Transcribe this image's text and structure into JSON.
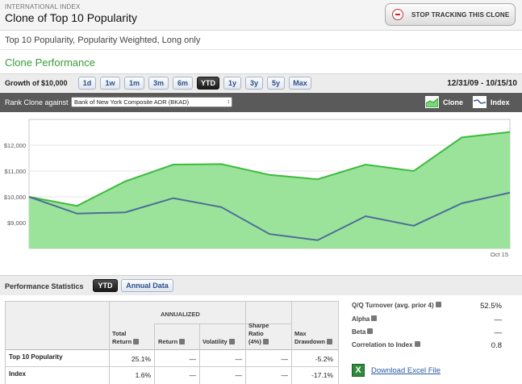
{
  "header": {
    "kicker": "INTERNATIONAL INDEX",
    "title": "Clone of Top 10 Popularity",
    "stop_button": "STOP TRACKING THIS CLONE"
  },
  "subtitle": "Top 10 Popularity, Popularity Weighted, Long only",
  "section_title": "Clone Performance",
  "range_bar": {
    "growth_label": "Growth of $10,000",
    "buttons": [
      "1d",
      "1w",
      "1m",
      "3m",
      "6m",
      "YTD",
      "1y",
      "3y",
      "5y",
      "Max"
    ],
    "active": "YTD",
    "date_range": "12/31/09 - 10/15/10"
  },
  "rank_bar": {
    "label": "Rank Clone against",
    "selected": "Bank of New York Composite ADR (BKAD)",
    "legend": [
      {
        "name": "Clone",
        "color": "#5fc95f"
      },
      {
        "name": "Index",
        "color": "#4d6d98"
      }
    ]
  },
  "chart_data": {
    "type": "area",
    "ylim": [
      8000,
      13000
    ],
    "yticks": [
      "$12,000",
      "$11,000",
      "$10,000",
      "$9,000"
    ],
    "ytick_values": [
      12000,
      11000,
      10000,
      9000
    ],
    "xtick_labels": [
      "Oct 15"
    ],
    "x": [
      0,
      1,
      2,
      3,
      4,
      5,
      6,
      7,
      8,
      9,
      10
    ],
    "series": [
      {
        "name": "Clone",
        "values": [
          10000,
          9650,
          10600,
          11250,
          11270,
          10850,
          10680,
          11250,
          11000,
          12300,
          12510
        ],
        "color": "#3dbb3d",
        "fill": "#9be39b"
      },
      {
        "name": "Index",
        "values": [
          10000,
          9350,
          9400,
          9950,
          9600,
          8560,
          8320,
          9250,
          8880,
          9750,
          10160
        ],
        "color": "#4d6d98"
      }
    ]
  },
  "perf": {
    "title": "Performance Statistics",
    "buttons": [
      "YTD",
      "Annual Data"
    ],
    "active": "YTD"
  },
  "stats": {
    "annualized_label": "ANNUALIZED",
    "columns": [
      "Total Return",
      "Return",
      "Volatility",
      "Sharpe Ratio (4%)",
      "Max Drawdown"
    ],
    "col_lines": [
      [
        "Total",
        "Return"
      ],
      [
        "Return"
      ],
      [
        "Volatility"
      ],
      [
        "Sharpe",
        "Ratio",
        "(4%)"
      ],
      [
        "Max",
        "Drawdown"
      ]
    ],
    "rows": [
      {
        "label": "Top 10 Popularity",
        "values": [
          "25.1%",
          "—",
          "—",
          "—",
          "-5.2%"
        ]
      },
      {
        "label": "Index",
        "values": [
          "1.6%",
          "—",
          "—",
          "—",
          "-17.1%"
        ]
      }
    ]
  },
  "side_stats": [
    {
      "label": "Q/Q Turnover (avg. prior 4)",
      "value": "52.5%"
    },
    {
      "label": "Alpha",
      "value": "—"
    },
    {
      "label": "Beta",
      "value": "—"
    },
    {
      "label": "Correlation to Index",
      "value": "0.8"
    }
  ],
  "excel": {
    "icon": "excel-icon",
    "label": "Download Excel File"
  }
}
